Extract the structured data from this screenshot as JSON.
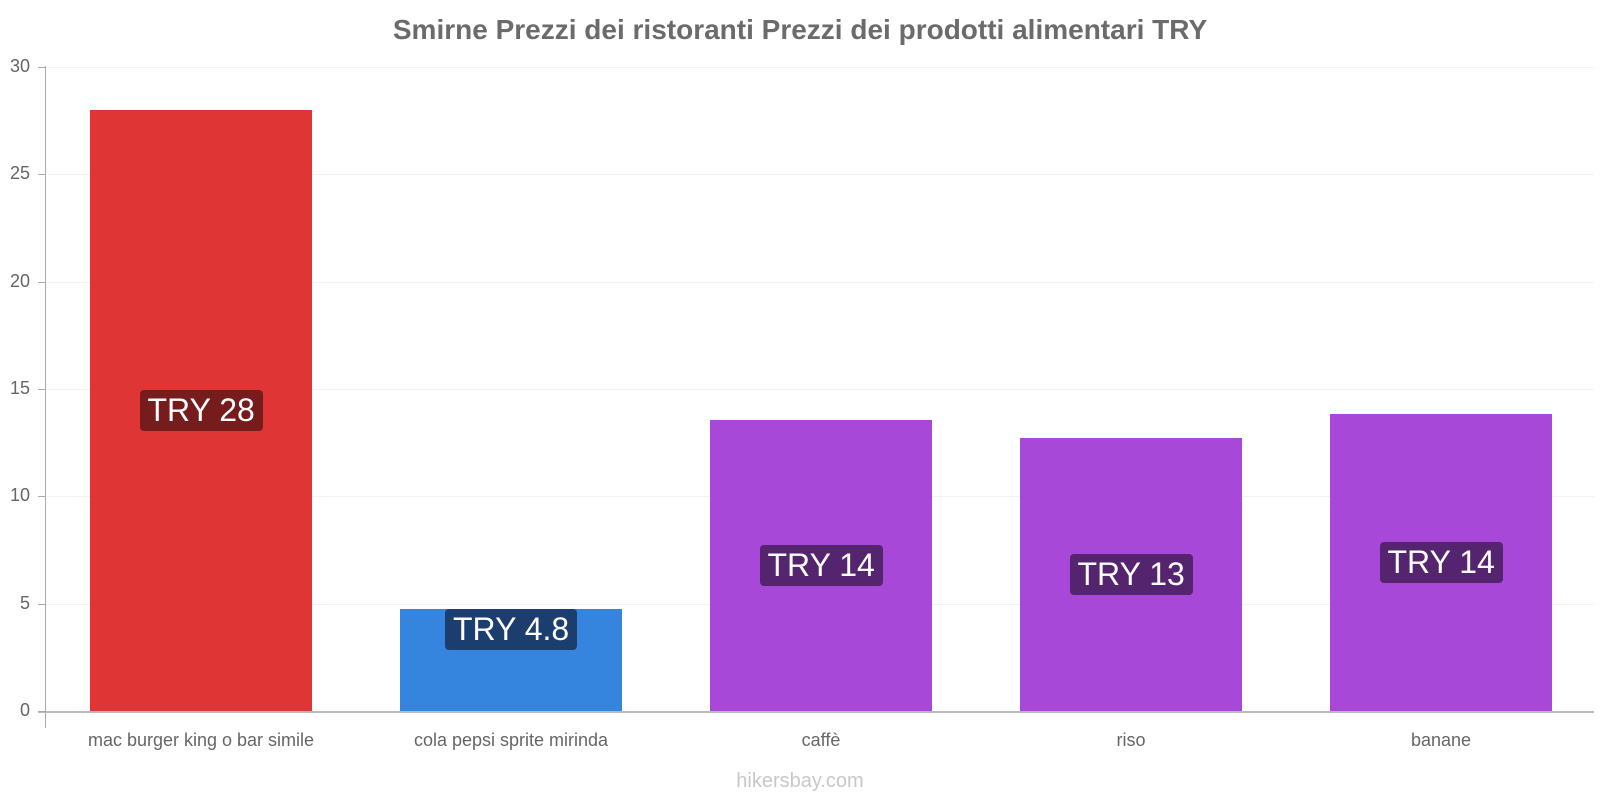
{
  "chart_data": {
    "type": "bar",
    "title": "Smirne Prezzi dei ristoranti Prezzi dei prodotti alimentari TRY",
    "xlabel": "",
    "ylabel": "",
    "ylim": [
      0,
      30
    ],
    "yticks": [
      "0",
      "5",
      "10",
      "15",
      "20",
      "25",
      "30"
    ],
    "grid": true,
    "legend": "none",
    "categories": [
      "mac burger king o bar simile",
      "cola pepsi sprite mirinda",
      "caffè",
      "riso",
      "banane"
    ],
    "values": [
      28,
      4.75,
      13.55,
      12.7,
      13.85
    ],
    "data_labels": [
      "TRY 28",
      "TRY 4.8",
      "TRY 14",
      "TRY 13",
      "TRY 14"
    ],
    "colors": [
      "#e03535",
      "#3584de",
      "#a748d8",
      "#a748d8",
      "#a748d8"
    ],
    "label_colors": [
      "#761c1c",
      "#1b3e6e",
      "#55246f",
      "#55246f",
      "#55246f"
    ]
  },
  "footer": "hikersbay.com"
}
